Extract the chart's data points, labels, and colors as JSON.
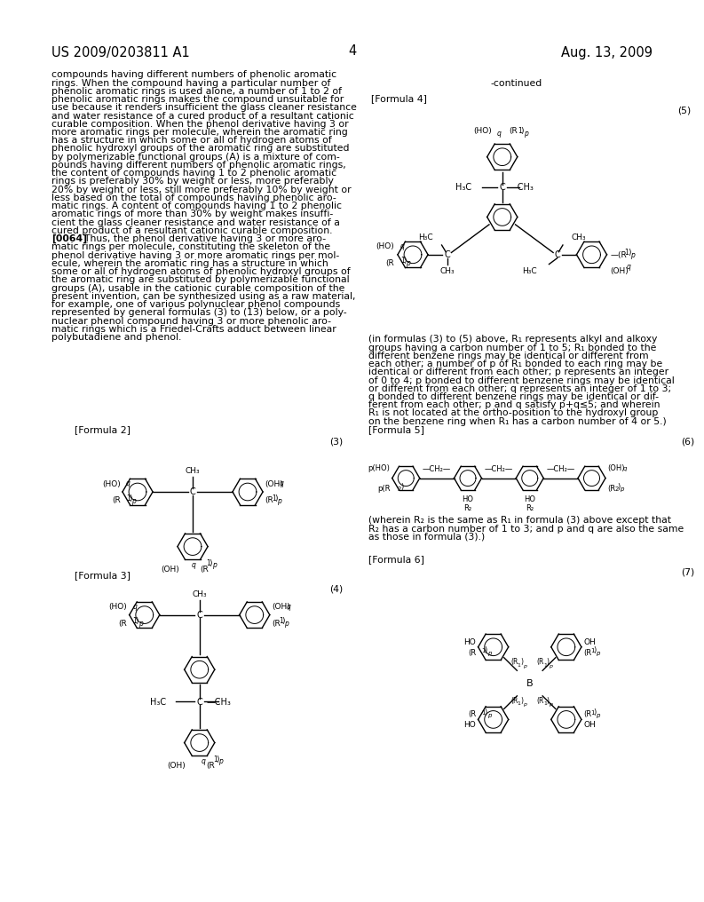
{
  "page_number": "4",
  "patent_number": "US 2009/0203811 A1",
  "patent_date": "Aug. 13, 2009",
  "background_color": "#ffffff",
  "text_color": "#000000",
  "left_lines": [
    "compounds having different numbers of phenolic aromatic",
    "rings. When the compound having a particular number of",
    "phenolic aromatic rings is used alone, a number of 1 to 2 of",
    "phenolic aromatic rings makes the compound unsuitable for",
    "use because it renders insufficient the glass cleaner resistance",
    "and water resistance of a cured product of a resultant cationic",
    "curable composition. When the phenol derivative having 3 or",
    "more aromatic rings per molecule, wherein the aromatic ring",
    "has a structure in which some or all of hydrogen atoms of",
    "phenolic hydroxyl groups of the aromatic ring are substituted",
    "by polymerizable functional groups (A) is a mixture of com-",
    "pounds having different numbers of phenolic aromatic rings,",
    "the content of compounds having 1 to 2 phenolic aromatic",
    "rings is preferably 30% by weight or less, more preferably",
    "20% by weight or less, still more preferably 10% by weight or",
    "less based on the total of compounds having phenolic aro-",
    "matic rings. A content of compounds having 1 to 2 phenolic",
    "aromatic rings of more than 30% by weight makes insuffi-",
    "cient the glass cleaner resistance and water resistance of a",
    "cured product of a resultant cationic curable composition."
  ],
  "bold_line_prefix": "[0064]",
  "bold_line_rest": "  Thus, the phenol derivative having 3 or more aro-",
  "left_lines2": [
    "matic rings per molecule, constituting the skeleton of the",
    "phenol derivative having 3 or more aromatic rings per mol-",
    "ecule, wherein the aromatic ring has a structure in which",
    "some or all of hydrogen atoms of phenolic hydroxyl groups of",
    "the aromatic ring are substituted by polymerizable functional",
    "groups (A), usable in the cationic curable composition of the",
    "present invention, can be synthesized using as a raw material,",
    "for example, one of various polynuclear phenol compounds",
    "represented by general formulas (3) to (13) below, or a poly-",
    "nuclear phenol compound having 3 or more phenolic aro-",
    "matic rings which is a Friedel-Crafts adduct between linear",
    "polybutadiene and phenol."
  ],
  "right_continued": "-continued",
  "formula4_label": "[Formula 4]",
  "formula4_num": "(5)",
  "formula2_label": "[Formula 2]",
  "formula2_num": "(3)",
  "formula3_label": "[Formula 3]",
  "formula3_num": "(4)",
  "formula5_label": "[Formula 5]",
  "formula5_num": "(6)",
  "formula6_label": "[Formula 6]",
  "formula6_num": "(7)",
  "cap4_lines": [
    "(in formulas (3) to (5) above, R₁ represents alkyl and alkoxy",
    "groups having a carbon number of 1 to 5; R₁ bonded to the",
    "different benzene rings may be identical or different from",
    "each other; a number of p of R₁ bonded to each ring may be",
    "identical or different from each other; p represents an integer",
    "of 0 to 4; p bonded to different benzene rings may be identical",
    "or different from each other; q represents an integer of 1 to 3;",
    "q bonded to different benzene rings may be identical or dif-",
    "ferent from each other; p and q satisfy p+q≤5; and wherein",
    "R₁ is not located at the ortho-position to the hydroxyl group",
    "on the benzene ring when R₁ has a carbon number of 4 or 5.)"
  ],
  "cap5_lines": [
    "(wherein R₂ is the same as R₁ in formula (3) above except that",
    "R₂ has a carbon number of 1 to 3; and p and q are also the same",
    "as those in formula (3).)"
  ]
}
